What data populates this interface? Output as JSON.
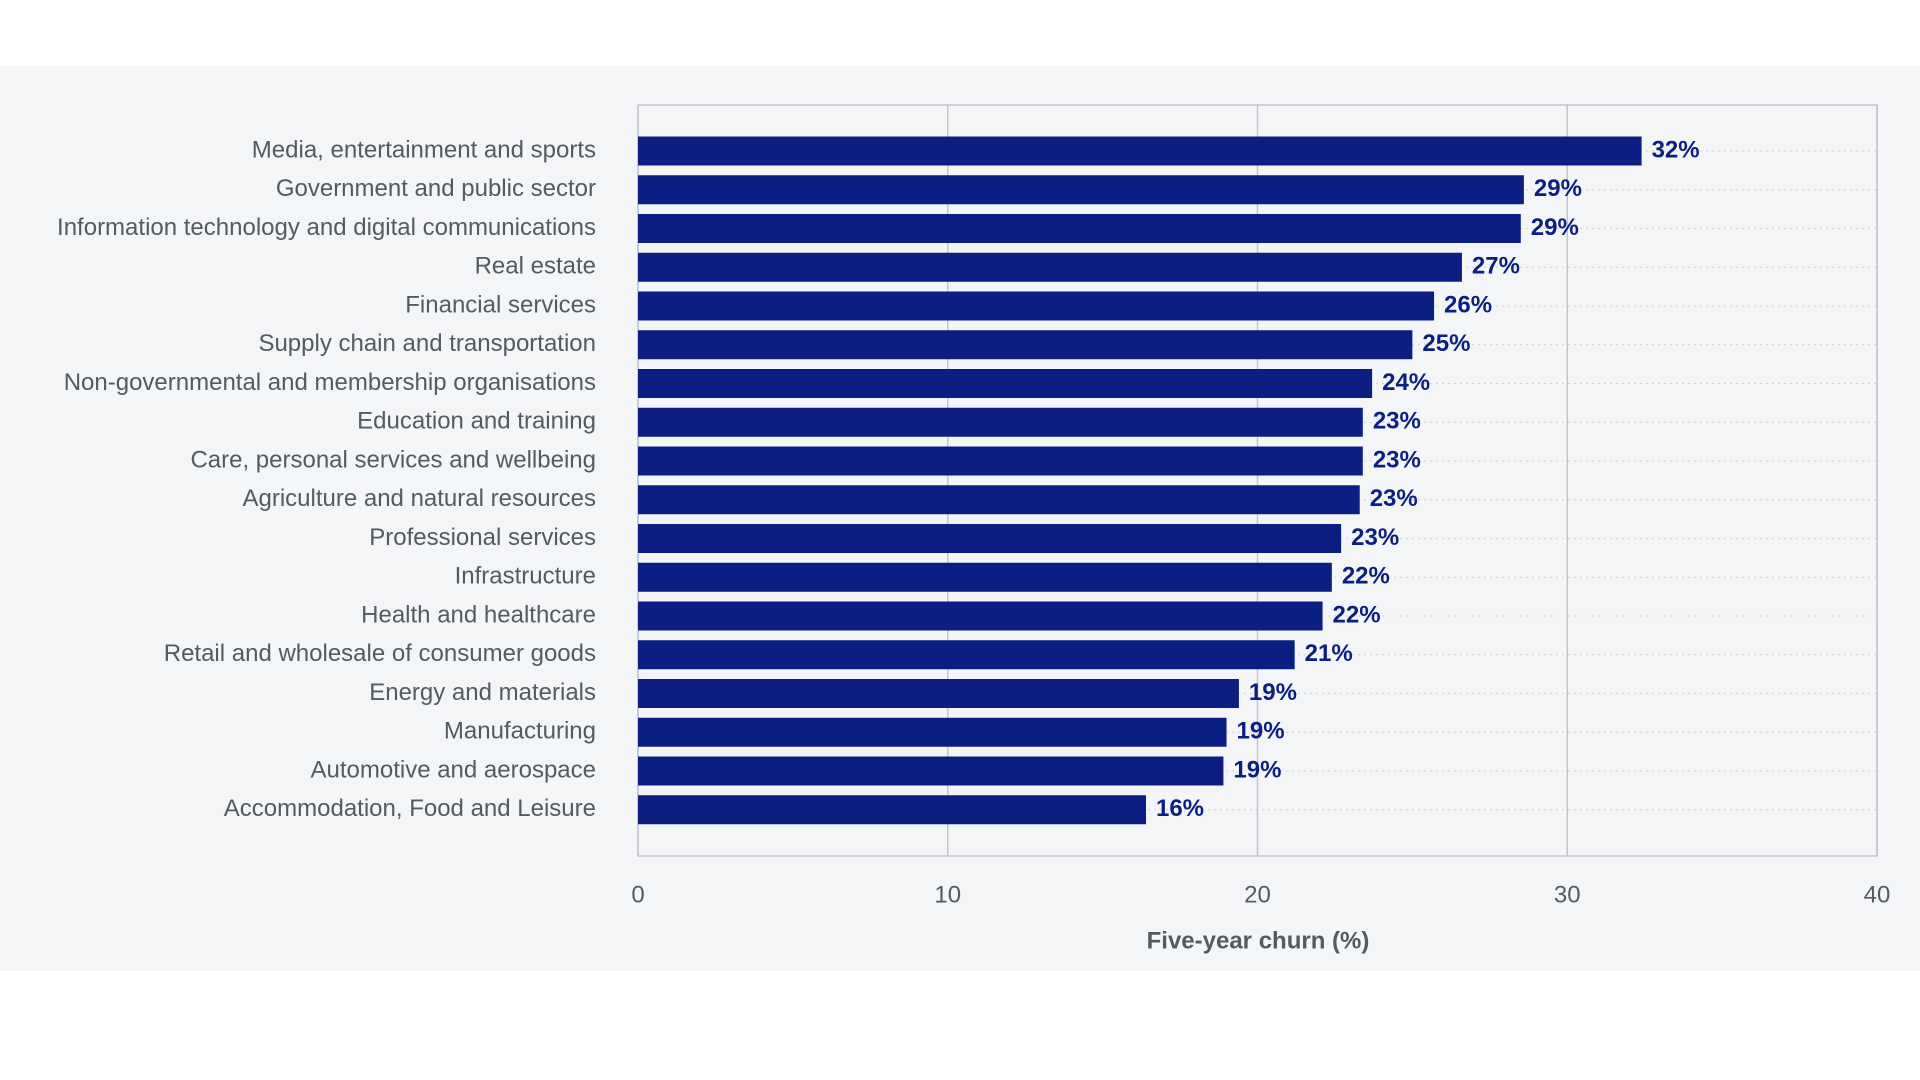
{
  "chart_data": {
    "type": "bar",
    "orientation": "horizontal",
    "categories": [
      "Media, entertainment and sports",
      "Government and public sector",
      "Information technology and digital communications",
      "Real estate",
      "Financial services",
      "Supply chain and transportation",
      "Non-governmental and membership organisations",
      "Education and training",
      "Care, personal services and wellbeing",
      "Agriculture and natural resources",
      "Professional services",
      "Infrastructure",
      "Health and healthcare",
      "Retail and wholesale of consumer goods",
      "Energy and materials",
      "Manufacturing",
      "Automotive and aerospace",
      "Accommodation, Food and Leisure"
    ],
    "values": [
      32.4,
      28.6,
      28.5,
      26.6,
      25.7,
      25.0,
      23.7,
      23.4,
      23.4,
      23.3,
      22.7,
      22.4,
      22.1,
      21.2,
      19.4,
      19.0,
      18.9,
      16.4
    ],
    "value_labels": [
      "32%",
      "29%",
      "29%",
      "27%",
      "26%",
      "25%",
      "24%",
      "23%",
      "23%",
      "23%",
      "23%",
      "22%",
      "22%",
      "21%",
      "19%",
      "19%",
      "19%",
      "16%"
    ],
    "color": "#0b1e82",
    "xlabel": "Five-year churn (%)",
    "xlim": [
      0,
      40
    ],
    "xticks": [
      0,
      10,
      20,
      30,
      40
    ],
    "grid": true
  }
}
